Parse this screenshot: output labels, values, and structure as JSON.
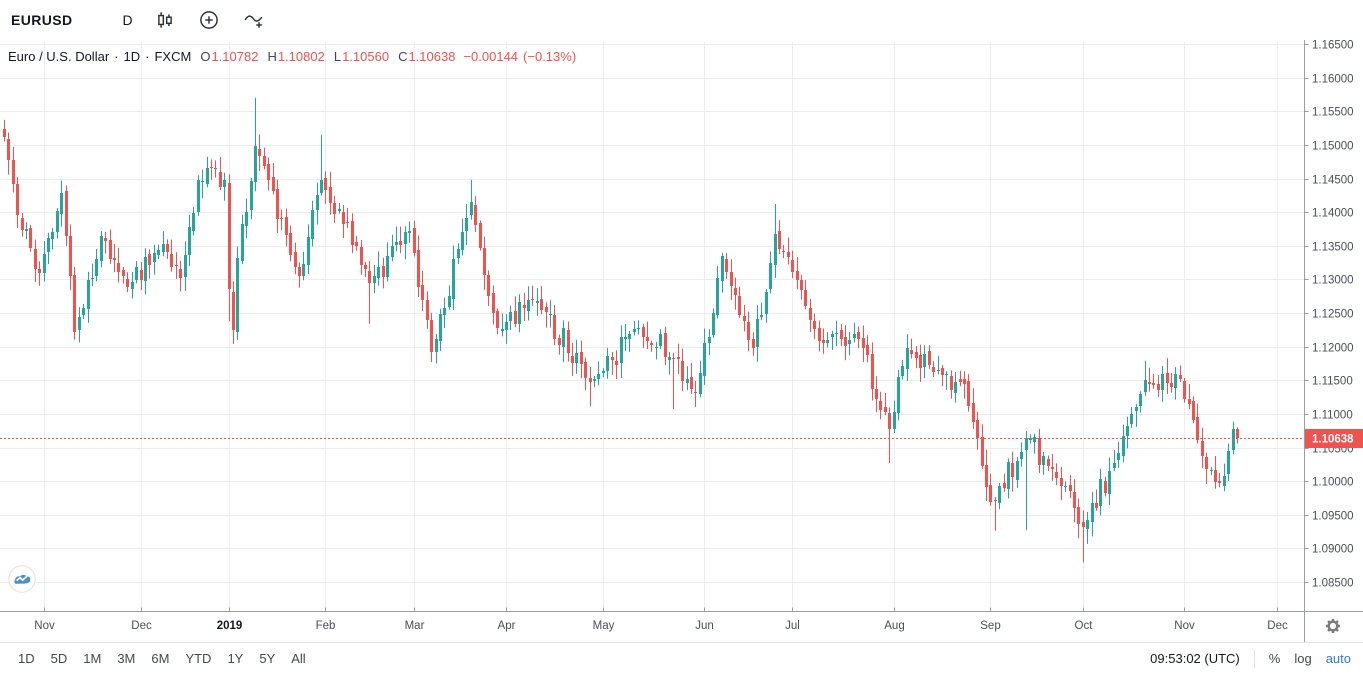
{
  "toolbar": {
    "symbol": "EURUSD",
    "interval": "D"
  },
  "icons": {
    "style": "candlestick-icon",
    "indicators": "plus-circle-icon",
    "compare": "compare-add-icon",
    "settings": "gear-icon",
    "logo": "provider-logo-icon"
  },
  "legend": {
    "title": "Euro / U.S. Dollar",
    "sep": "·",
    "interval": "1D",
    "exchange": "FXCM",
    "o_label": "O",
    "o": "1.10782",
    "h_label": "H",
    "h": "1.10802",
    "l_label": "L",
    "l": "1.10560",
    "c_label": "C",
    "c": "1.10638",
    "change": "−0.00144",
    "change_pct": "(−0.13%)"
  },
  "price_axis": {
    "labels": [
      "1.16500",
      "1.16000",
      "1.15500",
      "1.15000",
      "1.14500",
      "1.14000",
      "1.13500",
      "1.13000",
      "1.12500",
      "1.12000",
      "1.11500",
      "1.11000",
      "1.10500",
      "1.10000",
      "1.09500",
      "1.09000",
      "1.08500"
    ],
    "max": 1.165,
    "step": 0.005,
    "last_price_label": "1.10638"
  },
  "time_axis": {
    "labels": [
      {
        "text": "Nov",
        "date": "2018-11-01"
      },
      {
        "text": "Dec",
        "date": "2018-12-01"
      },
      {
        "text": "2019",
        "date": "2019-01-01",
        "bold": true
      },
      {
        "text": "Feb",
        "date": "2019-02-01"
      },
      {
        "text": "Mar",
        "date": "2019-03-01"
      },
      {
        "text": "Apr",
        "date": "2019-04-01"
      },
      {
        "text": "May",
        "date": "2019-05-01"
      },
      {
        "text": "Jun",
        "date": "2019-06-01"
      },
      {
        "text": "Jul",
        "date": "2019-07-01"
      },
      {
        "text": "Aug",
        "date": "2019-08-01"
      },
      {
        "text": "Sep",
        "date": "2019-09-01"
      },
      {
        "text": "Oct",
        "date": "2019-10-01"
      },
      {
        "text": "Nov",
        "date": "2019-11-01"
      },
      {
        "text": "Dec",
        "date": "2019-12-01"
      }
    ]
  },
  "footer": {
    "ranges": [
      "1D",
      "5D",
      "1M",
      "3M",
      "6M",
      "YTD",
      "1Y",
      "5Y",
      "All"
    ],
    "clock": "09:53:02 (UTC)",
    "percent": "%",
    "log": "log",
    "auto": "auto"
  },
  "colors": {
    "up": "#26a69a",
    "down": "#ef5350",
    "grid": "#ebedf0",
    "axis_border": "#9b9ea4",
    "axis_text": "#4a4e58",
    "text": "#131722",
    "accent_blue": "#2a7cd9",
    "price_label_bg": "#ef5350",
    "price_label_text": "#ffffff",
    "logo_blue": "#4a8fd3"
  },
  "chart_data": {
    "type": "candlestick",
    "symbol": "EURUSD",
    "timeframe": "1D",
    "title": "Euro / U.S. Dollar · 1D · FXCM",
    "y_range": [
      1.085,
      1.165
    ],
    "grid": true,
    "start": "2018-10-19",
    "end": "2019-11-19",
    "axis_extends_to": "2019-12-03",
    "holidays": [
      "2018-12-25",
      "2019-01-01"
    ],
    "last_bar": {
      "open": 1.10782,
      "high": 1.10802,
      "low": 1.1056,
      "close": 1.10638
    },
    "anchors": [
      {
        "d": "2018-10-19",
        "c": 1.1512
      },
      {
        "d": "2018-10-24",
        "c": 1.1395
      },
      {
        "d": "2018-10-31",
        "c": 1.131,
        "l": 1.1302
      },
      {
        "d": "2018-11-07",
        "c": 1.1428
      },
      {
        "d": "2018-11-12",
        "c": 1.1222,
        "l": 1.1216
      },
      {
        "d": "2018-11-20",
        "c": 1.1365
      },
      {
        "d": "2018-11-28",
        "c": 1.1288
      },
      {
        "d": "2018-12-10",
        "c": 1.1352
      },
      {
        "d": "2018-12-14",
        "c": 1.1302
      },
      {
        "d": "2018-12-20",
        "c": 1.1448
      },
      {
        "d": "2018-12-31",
        "c": 1.1448
      },
      {
        "d": "2019-01-02",
        "c": 1.1285,
        "l": 1.1238
      },
      {
        "d": "2019-01-03",
        "c": 1.1225,
        "l": 1.1212
      },
      {
        "d": "2019-01-04",
        "c": 1.1332
      },
      {
        "d": "2019-01-10",
        "c": 1.1498,
        "h": 1.157
      },
      {
        "d": "2019-01-24",
        "c": 1.1305
      },
      {
        "d": "2019-01-31",
        "c": 1.1448,
        "h": 1.1515
      },
      {
        "d": "2019-02-15",
        "c": 1.1295,
        "l": 1.1234
      },
      {
        "d": "2019-02-28",
        "c": 1.1372
      },
      {
        "d": "2019-03-07",
        "c": 1.1192,
        "l": 1.1177
      },
      {
        "d": "2019-03-20",
        "c": 1.1415,
        "h": 1.1448
      },
      {
        "d": "2019-03-28",
        "c": 1.1228
      },
      {
        "d": "2019-04-10",
        "c": 1.1268
      },
      {
        "d": "2019-04-26",
        "c": 1.1148,
        "l": 1.1111
      },
      {
        "d": "2019-05-13",
        "c": 1.1228
      },
      {
        "d": "2019-05-23",
        "c": 1.1182,
        "l": 1.1107
      },
      {
        "d": "2019-05-30",
        "c": 1.1132
      },
      {
        "d": "2019-06-07",
        "c": 1.1335
      },
      {
        "d": "2019-06-18",
        "c": 1.1198
      },
      {
        "d": "2019-06-25",
        "c": 1.1368,
        "h": 1.1412
      },
      {
        "d": "2019-07-09",
        "c": 1.1208
      },
      {
        "d": "2019-07-22",
        "c": 1.1212
      },
      {
        "d": "2019-07-31",
        "c": 1.1078,
        "l": 1.1027
      },
      {
        "d": "2019-08-06",
        "c": 1.1198
      },
      {
        "d": "2019-08-13",
        "c": 1.1172
      },
      {
        "d": "2019-08-23",
        "c": 1.1145
      },
      {
        "d": "2019-08-30",
        "c": 1.0992
      },
      {
        "d": "2019-09-03",
        "c": 1.0972,
        "l": 1.0926
      },
      {
        "d": "2019-09-12",
        "c": 1.1064,
        "l": 1.0927
      },
      {
        "d": "2019-09-20",
        "c": 1.1018
      },
      {
        "d": "2019-10-01",
        "c": 1.0932,
        "l": 1.0879
      },
      {
        "d": "2019-10-11",
        "c": 1.1042
      },
      {
        "d": "2019-10-21",
        "c": 1.115,
        "h": 1.1179
      },
      {
        "d": "2019-10-31",
        "c": 1.1152,
        "h": 1.1172
      },
      {
        "d": "2019-11-08",
        "c": 1.1018
      },
      {
        "d": "2019-11-14",
        "c": 1.1008,
        "l": 1.0989
      },
      {
        "d": "2019-11-18",
        "c": 1.1078
      },
      {
        "d": "2019-11-19",
        "c": 1.10638,
        "o": 1.10782,
        "h": 1.10802,
        "l": 1.1056
      }
    ]
  }
}
